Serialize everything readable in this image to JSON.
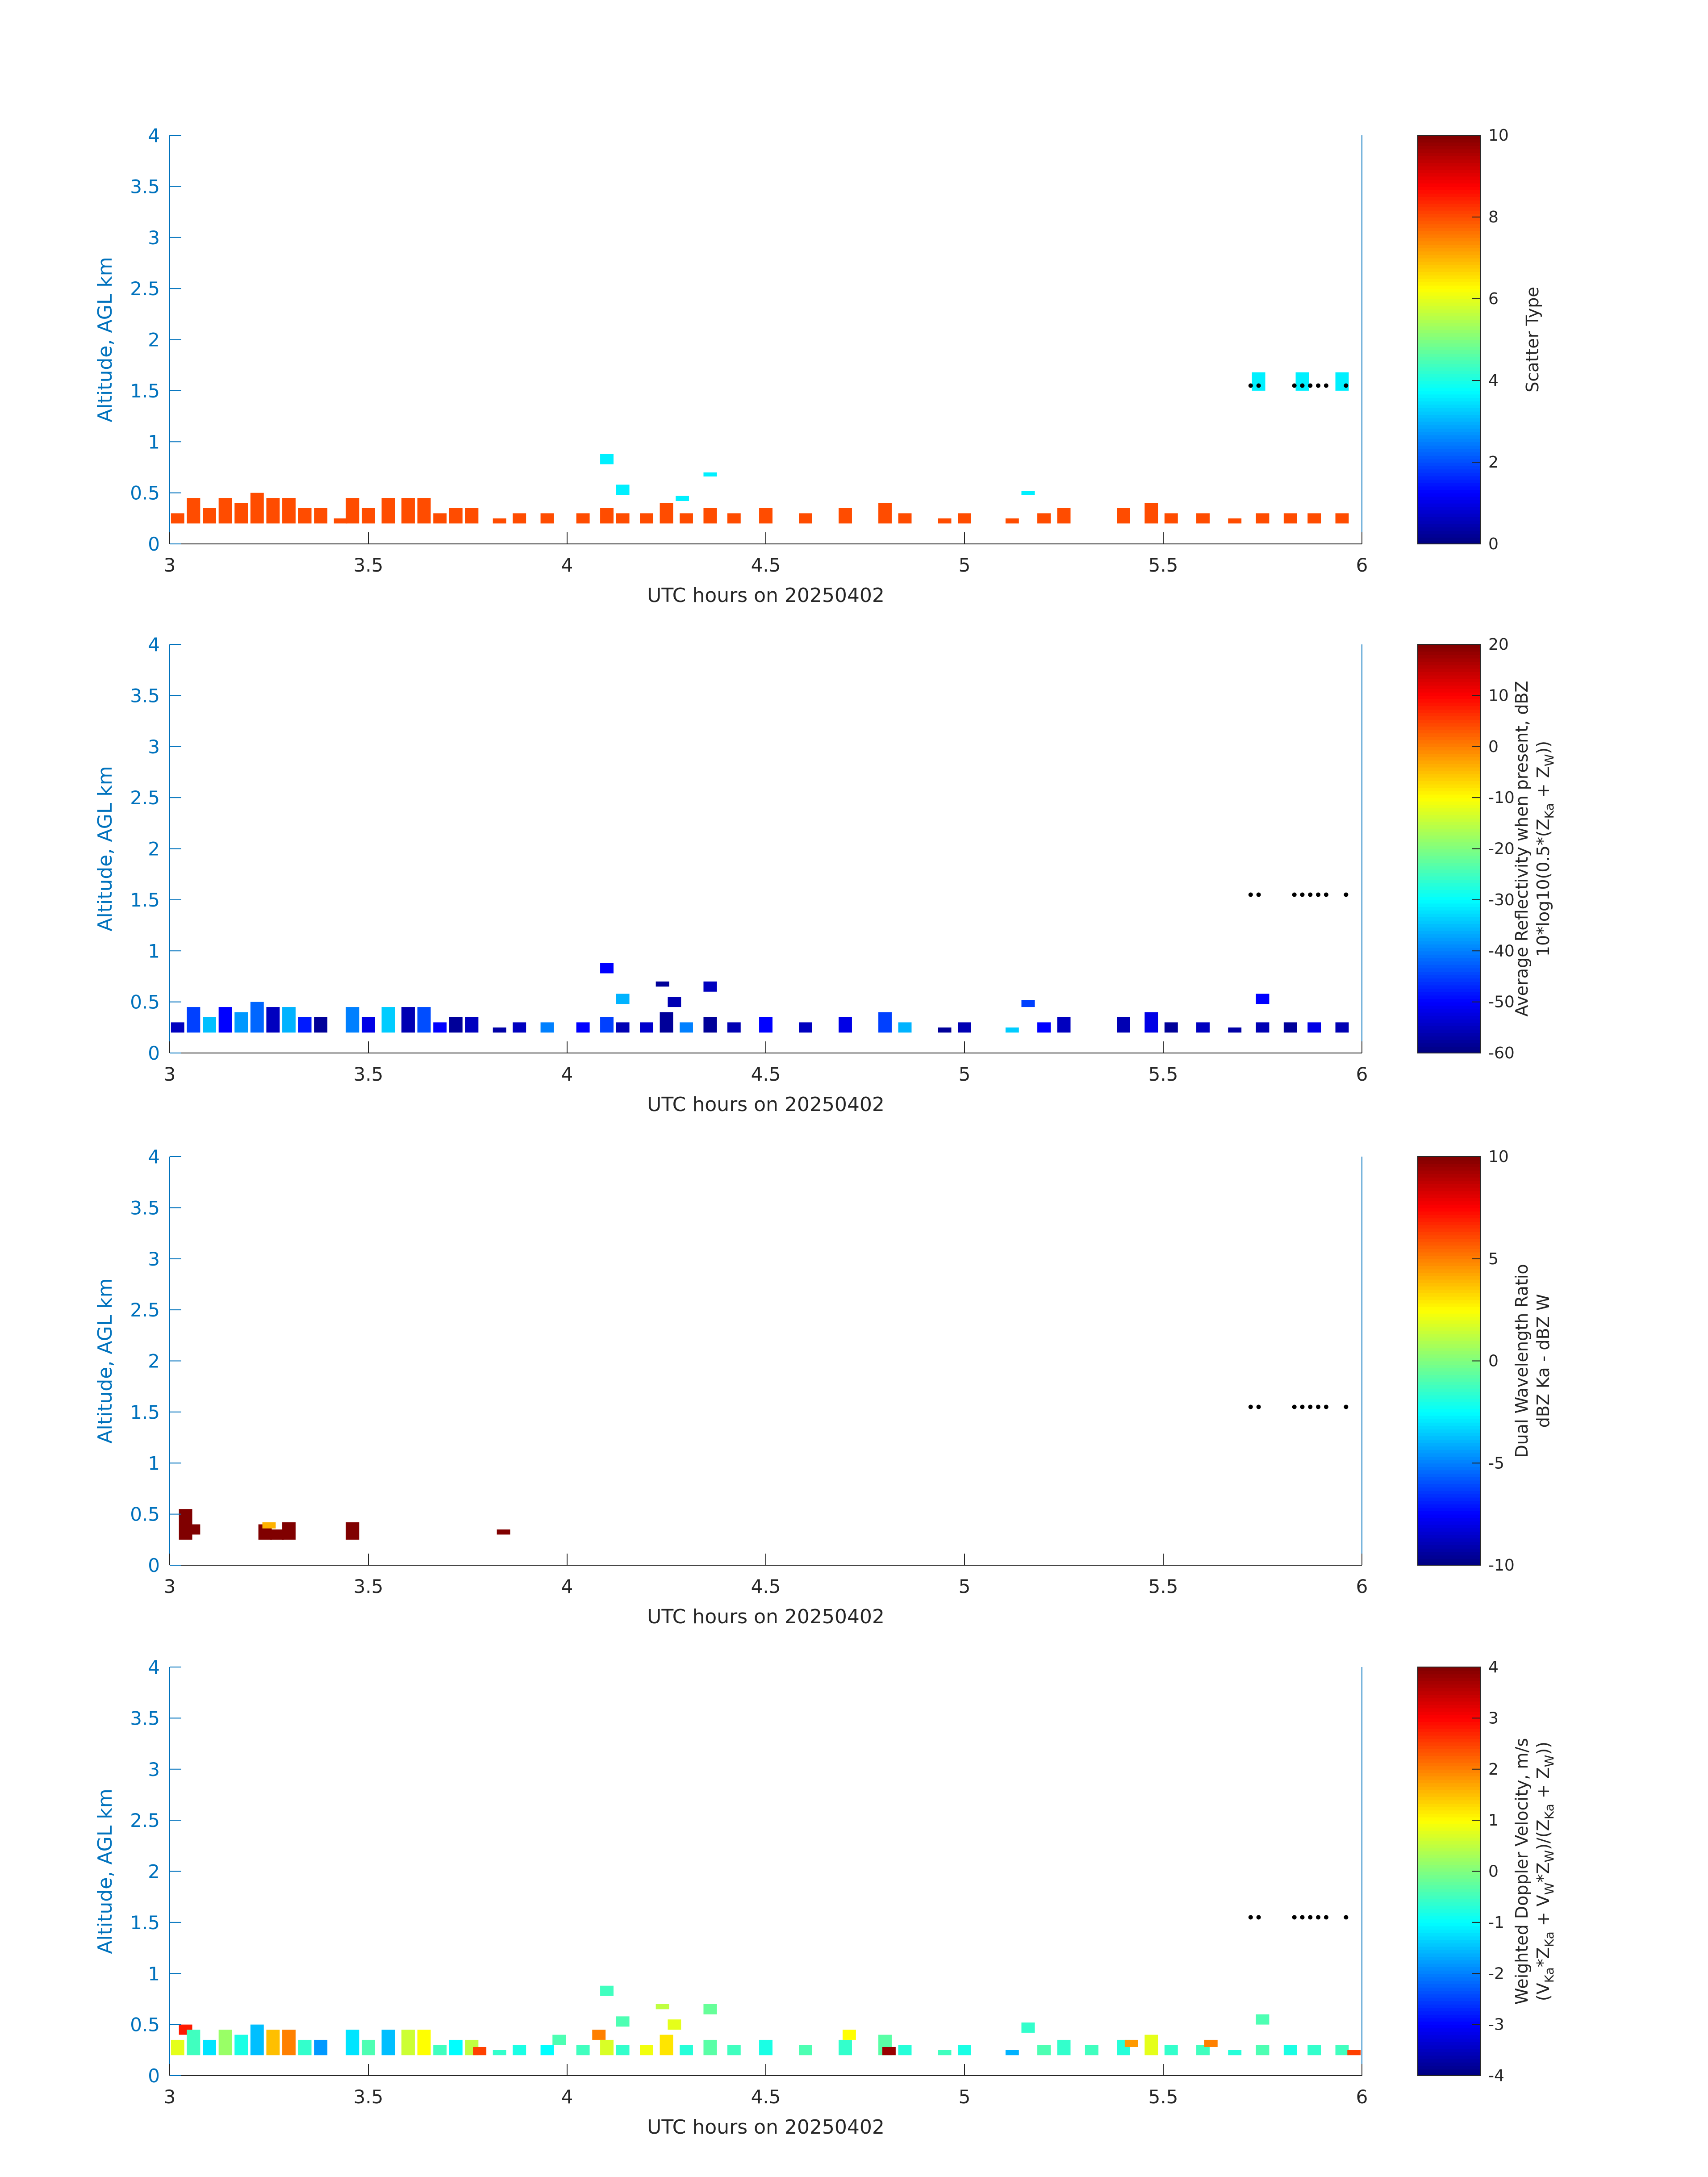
{
  "colors": {
    "axis": "#262626",
    "yaxis": "#0072bd",
    "marker": "#000000"
  },
  "chart_data": [
    {
      "type": "heatmap",
      "id": "scatter-type",
      "xlabel": "UTC hours on 20250402",
      "ylabel": "Altitude, AGL km",
      "xlim": [
        3,
        6
      ],
      "ylim": [
        0,
        4
      ],
      "xticks": [
        "3",
        "3.5",
        "4",
        "4.5",
        "5",
        "5.5",
        "6"
      ],
      "yticks": [
        "0",
        "0.5",
        "1",
        "1.5",
        "2",
        "2.5",
        "3",
        "3.5",
        "4"
      ],
      "colorbar": {
        "label_lines": [
          "Scatter Type"
        ],
        "ticks": [
          "0",
          "2",
          "4",
          "6",
          "8",
          "10"
        ],
        "range": [
          0,
          10
        ]
      },
      "cells": [
        [
          3.02,
          0.2,
          0.3,
          8
        ],
        [
          3.06,
          0.2,
          0.45,
          8
        ],
        [
          3.1,
          0.2,
          0.35,
          8
        ],
        [
          3.14,
          0.2,
          0.45,
          8
        ],
        [
          3.18,
          0.2,
          0.4,
          8
        ],
        [
          3.22,
          0.2,
          0.5,
          8
        ],
        [
          3.26,
          0.2,
          0.45,
          8
        ],
        [
          3.3,
          0.2,
          0.45,
          8
        ],
        [
          3.34,
          0.2,
          0.35,
          8
        ],
        [
          3.38,
          0.2,
          0.35,
          8
        ],
        [
          3.43,
          0.2,
          0.25,
          8
        ],
        [
          3.46,
          0.2,
          0.45,
          8
        ],
        [
          3.5,
          0.2,
          0.35,
          8
        ],
        [
          3.55,
          0.2,
          0.45,
          8
        ],
        [
          3.6,
          0.2,
          0.45,
          8
        ],
        [
          3.64,
          0.2,
          0.45,
          8
        ],
        [
          3.68,
          0.2,
          0.3,
          8
        ],
        [
          3.72,
          0.2,
          0.35,
          8
        ],
        [
          3.76,
          0.2,
          0.35,
          8
        ],
        [
          3.83,
          0.2,
          0.25,
          8
        ],
        [
          3.88,
          0.2,
          0.3,
          8
        ],
        [
          3.95,
          0.2,
          0.3,
          8
        ],
        [
          4.04,
          0.2,
          0.3,
          8
        ],
        [
          4.1,
          0.2,
          0.35,
          8
        ],
        [
          4.14,
          0.2,
          0.3,
          8
        ],
        [
          4.2,
          0.2,
          0.3,
          8
        ],
        [
          4.25,
          0.2,
          0.4,
          8
        ],
        [
          4.3,
          0.2,
          0.3,
          8
        ],
        [
          4.36,
          0.2,
          0.35,
          8
        ],
        [
          4.42,
          0.2,
          0.3,
          8
        ],
        [
          4.5,
          0.2,
          0.35,
          8
        ],
        [
          4.6,
          0.2,
          0.3,
          8
        ],
        [
          4.7,
          0.2,
          0.35,
          8
        ],
        [
          4.8,
          0.2,
          0.4,
          8
        ],
        [
          4.85,
          0.2,
          0.3,
          8
        ],
        [
          4.95,
          0.2,
          0.25,
          8
        ],
        [
          5.0,
          0.2,
          0.3,
          8
        ],
        [
          5.12,
          0.2,
          0.25,
          8
        ],
        [
          5.2,
          0.2,
          0.3,
          8
        ],
        [
          5.25,
          0.2,
          0.35,
          8
        ],
        [
          5.4,
          0.2,
          0.35,
          8
        ],
        [
          5.47,
          0.2,
          0.4,
          8
        ],
        [
          5.52,
          0.2,
          0.3,
          8
        ],
        [
          5.6,
          0.2,
          0.3,
          8
        ],
        [
          5.68,
          0.2,
          0.25,
          8
        ],
        [
          5.75,
          0.2,
          0.3,
          8
        ],
        [
          5.82,
          0.2,
          0.3,
          8
        ],
        [
          5.88,
          0.2,
          0.3,
          8
        ],
        [
          5.95,
          0.2,
          0.3,
          8
        ],
        [
          4.1,
          0.78,
          0.88,
          3.6
        ],
        [
          4.14,
          0.48,
          0.58,
          3.6
        ],
        [
          4.29,
          0.42,
          0.47,
          3.6
        ],
        [
          4.36,
          0.66,
          0.7,
          3.6
        ],
        [
          5.16,
          0.48,
          0.52,
          3.6
        ],
        [
          5.74,
          1.5,
          1.68,
          3.6
        ],
        [
          5.85,
          1.5,
          1.68,
          3.6
        ],
        [
          5.95,
          1.5,
          1.68,
          3.6
        ]
      ],
      "markers": [
        5.72,
        5.74,
        5.83,
        5.85,
        5.87,
        5.89,
        5.91,
        5.96
      ],
      "marker_alt": 1.55
    },
    {
      "type": "heatmap",
      "id": "reflectivity",
      "xlabel": "UTC hours on 20250402",
      "ylabel": "Altitude, AGL km",
      "xlim": [
        3,
        6
      ],
      "ylim": [
        0,
        4
      ],
      "xticks": [
        "3",
        "3.5",
        "4",
        "4.5",
        "5",
        "5.5",
        "6"
      ],
      "yticks": [
        "0",
        "0.5",
        "1",
        "1.5",
        "2",
        "2.5",
        "3",
        "3.5",
        "4"
      ],
      "colorbar": {
        "label_lines": [
          "Average Reflectivity when present, dBZ",
          "10*log10(0.5*(Z_Ka + Z_W))"
        ],
        "ticks": [
          "-60",
          "-50",
          "-40",
          "-30",
          "-20",
          "-10",
          "0",
          "10",
          "20"
        ],
        "range": [
          -60,
          20
        ]
      },
      "cells": [
        [
          3.02,
          0.2,
          0.3,
          -55
        ],
        [
          3.06,
          0.2,
          0.45,
          -45
        ],
        [
          3.1,
          0.2,
          0.35,
          -35
        ],
        [
          3.14,
          0.2,
          0.45,
          -50
        ],
        [
          3.18,
          0.2,
          0.4,
          -38
        ],
        [
          3.22,
          0.2,
          0.5,
          -42
        ],
        [
          3.26,
          0.2,
          0.45,
          -55
        ],
        [
          3.3,
          0.2,
          0.45,
          -36
        ],
        [
          3.34,
          0.2,
          0.35,
          -48
        ],
        [
          3.38,
          0.2,
          0.35,
          -58
        ],
        [
          3.46,
          0.2,
          0.45,
          -40
        ],
        [
          3.5,
          0.2,
          0.35,
          -52
        ],
        [
          3.55,
          0.2,
          0.45,
          -34
        ],
        [
          3.6,
          0.2,
          0.45,
          -56
        ],
        [
          3.64,
          0.2,
          0.45,
          -44
        ],
        [
          3.68,
          0.2,
          0.3,
          -50
        ],
        [
          3.72,
          0.2,
          0.35,
          -58
        ],
        [
          3.76,
          0.2,
          0.35,
          -55
        ],
        [
          3.83,
          0.2,
          0.25,
          -57
        ],
        [
          3.88,
          0.2,
          0.3,
          -55
        ],
        [
          3.95,
          0.2,
          0.3,
          -40
        ],
        [
          4.04,
          0.2,
          0.3,
          -50
        ],
        [
          4.1,
          0.2,
          0.35,
          -45
        ],
        [
          4.14,
          0.2,
          0.3,
          -56
        ],
        [
          4.2,
          0.2,
          0.3,
          -54
        ],
        [
          4.25,
          0.2,
          0.4,
          -58
        ],
        [
          4.3,
          0.2,
          0.3,
          -40
        ],
        [
          4.36,
          0.2,
          0.35,
          -58
        ],
        [
          4.42,
          0.2,
          0.3,
          -56
        ],
        [
          4.5,
          0.2,
          0.35,
          -50
        ],
        [
          4.6,
          0.2,
          0.3,
          -55
        ],
        [
          4.7,
          0.2,
          0.35,
          -52
        ],
        [
          4.8,
          0.2,
          0.4,
          -45
        ],
        [
          4.85,
          0.2,
          0.3,
          -36
        ],
        [
          4.95,
          0.2,
          0.25,
          -58
        ],
        [
          5.0,
          0.2,
          0.3,
          -56
        ],
        [
          5.12,
          0.2,
          0.25,
          -34
        ],
        [
          5.2,
          0.2,
          0.3,
          -50
        ],
        [
          5.25,
          0.2,
          0.35,
          -55
        ],
        [
          5.4,
          0.2,
          0.35,
          -56
        ],
        [
          5.47,
          0.2,
          0.4,
          -52
        ],
        [
          5.52,
          0.2,
          0.3,
          -58
        ],
        [
          5.6,
          0.2,
          0.3,
          -55
        ],
        [
          5.68,
          0.2,
          0.25,
          -57
        ],
        [
          5.75,
          0.2,
          0.3,
          -56
        ],
        [
          5.82,
          0.2,
          0.3,
          -58
        ],
        [
          5.88,
          0.2,
          0.3,
          -52
        ],
        [
          5.95,
          0.2,
          0.3,
          -56
        ],
        [
          4.1,
          0.78,
          0.88,
          -50
        ],
        [
          4.14,
          0.48,
          0.58,
          -36
        ],
        [
          4.24,
          0.65,
          0.7,
          -58
        ],
        [
          4.27,
          0.45,
          0.55,
          -56
        ],
        [
          4.36,
          0.6,
          0.7,
          -55
        ],
        [
          5.16,
          0.45,
          0.52,
          -45
        ],
        [
          5.75,
          0.48,
          0.58,
          -50
        ]
      ],
      "markers": [
        5.72,
        5.74,
        5.83,
        5.85,
        5.87,
        5.89,
        5.91,
        5.96
      ],
      "marker_alt": 1.55
    },
    {
      "type": "heatmap",
      "id": "dual-wavelength-ratio",
      "xlabel": "UTC hours on 20250402",
      "ylabel": "Altitude, AGL km",
      "xlim": [
        3,
        6
      ],
      "ylim": [
        0,
        4
      ],
      "xticks": [
        "3",
        "3.5",
        "4",
        "4.5",
        "5",
        "5.5",
        "6"
      ],
      "yticks": [
        "0",
        "0.5",
        "1",
        "1.5",
        "2",
        "2.5",
        "3",
        "3.5",
        "4"
      ],
      "colorbar": {
        "label_lines": [
          "Dual Wavelength Ratio",
          "dBZ Ka - dBZ W"
        ],
        "ticks": [
          "-10",
          "-5",
          "0",
          "5",
          "10"
        ],
        "range": [
          -10,
          10
        ]
      },
      "cells": [
        [
          3.04,
          0.25,
          0.55,
          10
        ],
        [
          3.06,
          0.3,
          0.4,
          10
        ],
        [
          3.24,
          0.25,
          0.4,
          10
        ],
        [
          3.25,
          0.36,
          0.42,
          4
        ],
        [
          3.27,
          0.25,
          0.35,
          10
        ],
        [
          3.3,
          0.25,
          0.42,
          10
        ],
        [
          3.46,
          0.25,
          0.42,
          10
        ],
        [
          3.84,
          0.3,
          0.35,
          10
        ]
      ],
      "markers": [
        5.72,
        5.74,
        5.83,
        5.85,
        5.87,
        5.89,
        5.91,
        5.96
      ],
      "marker_alt": 1.55
    },
    {
      "type": "heatmap",
      "id": "doppler-velocity",
      "xlabel": "UTC hours on 20250402",
      "ylabel": "Altitude, AGL km",
      "xlim": [
        3,
        6
      ],
      "ylim": [
        0,
        4
      ],
      "xticks": [
        "3",
        "3.5",
        "4",
        "4.5",
        "5",
        "5.5",
        "6"
      ],
      "yticks": [
        "0",
        "0.5",
        "1",
        "1.5",
        "2",
        "2.5",
        "3",
        "3.5",
        "4"
      ],
      "colorbar": {
        "label_lines": [
          "Weighted Doppler Velocity, m/s",
          "(V_Ka*Z_Ka + V_W*Z_W)/(Z_Ka + Z_W))"
        ],
        "ticks": [
          "-4",
          "-3",
          "-2",
          "-1",
          "0",
          "1",
          "2",
          "3",
          "4"
        ],
        "range": [
          -4,
          4
        ]
      },
      "cells": [
        [
          3.02,
          0.2,
          0.35,
          0.8
        ],
        [
          3.04,
          0.4,
          0.5,
          2.8
        ],
        [
          3.06,
          0.2,
          0.45,
          -0.5
        ],
        [
          3.1,
          0.2,
          0.35,
          -1.2
        ],
        [
          3.14,
          0.2,
          0.45,
          0.2
        ],
        [
          3.18,
          0.2,
          0.4,
          -0.8
        ],
        [
          3.22,
          0.2,
          0.5,
          -1.5
        ],
        [
          3.26,
          0.2,
          0.45,
          1.5
        ],
        [
          3.3,
          0.2,
          0.45,
          2.0
        ],
        [
          3.34,
          0.2,
          0.35,
          -0.6
        ],
        [
          3.38,
          0.2,
          0.35,
          -1.8
        ],
        [
          3.46,
          0.2,
          0.45,
          -1.2
        ],
        [
          3.5,
          0.2,
          0.35,
          -0.4
        ],
        [
          3.55,
          0.2,
          0.45,
          -1.5
        ],
        [
          3.6,
          0.2,
          0.45,
          0.6
        ],
        [
          3.64,
          0.2,
          0.45,
          1.0
        ],
        [
          3.68,
          0.2,
          0.3,
          -0.5
        ],
        [
          3.72,
          0.2,
          0.35,
          -1.0
        ],
        [
          3.76,
          0.2,
          0.35,
          0.5
        ],
        [
          3.78,
          0.2,
          0.28,
          2.5
        ],
        [
          3.83,
          0.2,
          0.25,
          -0.6
        ],
        [
          3.88,
          0.2,
          0.3,
          -0.8
        ],
        [
          3.95,
          0.2,
          0.3,
          -1.0
        ],
        [
          3.98,
          0.3,
          0.4,
          -0.4
        ],
        [
          4.04,
          0.2,
          0.3,
          -0.5
        ],
        [
          4.08,
          0.35,
          0.45,
          2.0
        ],
        [
          4.1,
          0.2,
          0.35,
          0.7
        ],
        [
          4.14,
          0.2,
          0.3,
          -0.6
        ],
        [
          4.2,
          0.2,
          0.3,
          0.9
        ],
        [
          4.25,
          0.2,
          0.4,
          1.2
        ],
        [
          4.3,
          0.2,
          0.3,
          -0.7
        ],
        [
          4.36,
          0.2,
          0.35,
          -0.3
        ],
        [
          4.42,
          0.2,
          0.3,
          -0.5
        ],
        [
          4.5,
          0.2,
          0.35,
          -0.8
        ],
        [
          4.6,
          0.2,
          0.3,
          -0.4
        ],
        [
          4.7,
          0.2,
          0.35,
          -0.6
        ],
        [
          4.71,
          0.35,
          0.45,
          1.0
        ],
        [
          4.8,
          0.2,
          0.4,
          -0.3
        ],
        [
          4.81,
          0.2,
          0.28,
          3.8
        ],
        [
          4.85,
          0.2,
          0.3,
          -0.7
        ],
        [
          4.95,
          0.2,
          0.25,
          -0.5
        ],
        [
          5.0,
          0.2,
          0.3,
          -0.8
        ],
        [
          5.12,
          0.2,
          0.25,
          -1.6
        ],
        [
          5.2,
          0.2,
          0.3,
          -0.4
        ],
        [
          5.25,
          0.2,
          0.35,
          -0.6
        ],
        [
          5.32,
          0.2,
          0.3,
          -0.5
        ],
        [
          5.4,
          0.2,
          0.35,
          -0.7
        ],
        [
          5.42,
          0.28,
          0.35,
          1.8
        ],
        [
          5.47,
          0.2,
          0.4,
          0.8
        ],
        [
          5.52,
          0.2,
          0.3,
          -0.6
        ],
        [
          5.6,
          0.2,
          0.3,
          -0.5
        ],
        [
          5.62,
          0.28,
          0.35,
          2.0
        ],
        [
          5.68,
          0.2,
          0.25,
          -0.7
        ],
        [
          5.75,
          0.2,
          0.3,
          -0.4
        ],
        [
          5.82,
          0.2,
          0.3,
          -0.8
        ],
        [
          5.88,
          0.2,
          0.3,
          -0.6
        ],
        [
          5.95,
          0.2,
          0.3,
          -0.5
        ],
        [
          5.98,
          0.2,
          0.25,
          2.5
        ],
        [
          4.1,
          0.78,
          0.88,
          -0.5
        ],
        [
          4.14,
          0.48,
          0.58,
          -0.4
        ],
        [
          4.24,
          0.65,
          0.7,
          0.5
        ],
        [
          4.27,
          0.45,
          0.55,
          0.8
        ],
        [
          4.36,
          0.6,
          0.7,
          -0.2
        ],
        [
          5.16,
          0.42,
          0.52,
          -0.6
        ],
        [
          5.75,
          0.5,
          0.6,
          -0.4
        ]
      ],
      "markers": [
        5.72,
        5.74,
        5.83,
        5.85,
        5.87,
        5.89,
        5.91,
        5.96
      ],
      "marker_alt": 1.55
    }
  ]
}
